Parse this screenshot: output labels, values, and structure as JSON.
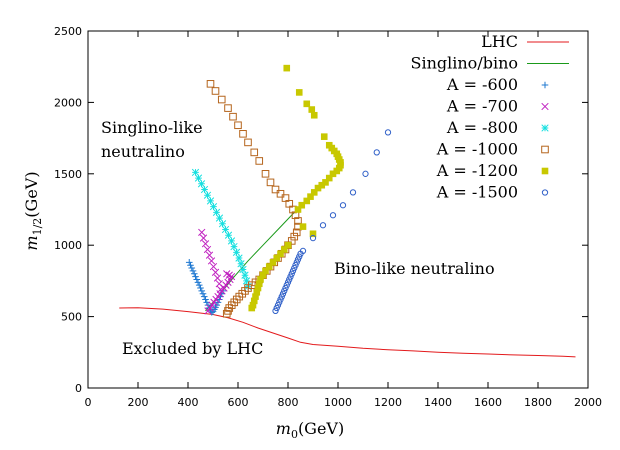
{
  "chart_data": {
    "type": "scatter",
    "xlabel": "m",
    "xlabel_sub": "0",
    "xlabel_unit": "(GeV)",
    "ylabel": "m",
    "ylabel_sub": "1/2",
    "ylabel_unit": "(GeV)",
    "xlim": [
      0,
      2000
    ],
    "ylim": [
      0,
      2500
    ],
    "x_ticks": [
      0,
      200,
      400,
      600,
      800,
      1000,
      1200,
      1400,
      1600,
      1800,
      2000
    ],
    "y_ticks": [
      0,
      500,
      1000,
      1500,
      2000,
      2500
    ],
    "legend_position": "top-right",
    "annotations": [
      {
        "id": "singlino",
        "lines": [
          "Singlino-like",
          "neutralino"
        ]
      },
      {
        "id": "bino",
        "lines": [
          "Bino-like neutralino"
        ]
      },
      {
        "id": "excluded",
        "lines": [
          "Excluded by LHC"
        ]
      }
    ],
    "series": [
      {
        "name": "LHC",
        "kind": "line",
        "color": "#e31a1c",
        "points": [
          [
            125,
            560
          ],
          [
            200,
            562
          ],
          [
            300,
            552
          ],
          [
            400,
            535
          ],
          [
            500,
            515
          ],
          [
            560,
            492
          ],
          [
            620,
            460
          ],
          [
            680,
            420
          ],
          [
            740,
            385
          ],
          [
            800,
            350
          ],
          [
            850,
            320
          ],
          [
            900,
            305
          ],
          [
            1000,
            292
          ],
          [
            1100,
            278
          ],
          [
            1200,
            268
          ],
          [
            1300,
            260
          ],
          [
            1400,
            250
          ],
          [
            1500,
            243
          ],
          [
            1600,
            238
          ],
          [
            1700,
            232
          ],
          [
            1800,
            228
          ],
          [
            1900,
            222
          ],
          [
            1950,
            218
          ]
        ]
      },
      {
        "name": "Singlino/bino",
        "kind": "line",
        "color": "#1a9a1a",
        "points": [
          [
            470,
            540
          ],
          [
            520,
            640
          ],
          [
            580,
            770
          ],
          [
            640,
            890
          ],
          [
            700,
            1000
          ],
          [
            760,
            1110
          ],
          [
            820,
            1220
          ],
          [
            880,
            1320
          ],
          [
            940,
            1420
          ],
          [
            1000,
            1520
          ]
        ]
      },
      {
        "name": "A = -600",
        "marker": "plus",
        "color": "#1f78d1",
        "points": [
          [
            405,
            880
          ],
          [
            410,
            860
          ],
          [
            415,
            840
          ],
          [
            420,
            820
          ],
          [
            425,
            800
          ],
          [
            430,
            780
          ],
          [
            435,
            760
          ],
          [
            440,
            740
          ],
          [
            445,
            720
          ],
          [
            450,
            700
          ],
          [
            455,
            680
          ],
          [
            460,
            660
          ],
          [
            465,
            640
          ],
          [
            470,
            620
          ],
          [
            475,
            600
          ],
          [
            480,
            580
          ],
          [
            485,
            560
          ],
          [
            490,
            545
          ],
          [
            495,
            530
          ],
          [
            500,
            535
          ],
          [
            505,
            550
          ],
          [
            510,
            565
          ],
          [
            515,
            580
          ],
          [
            520,
            600
          ],
          [
            525,
            620
          ],
          [
            530,
            640
          ],
          [
            535,
            660
          ],
          [
            540,
            680
          ]
        ]
      },
      {
        "name": "A = -700",
        "marker": "cross",
        "color": "#c020c0",
        "points": [
          [
            455,
            1090
          ],
          [
            462,
            1050
          ],
          [
            470,
            1010
          ],
          [
            478,
            970
          ],
          [
            486,
            930
          ],
          [
            494,
            890
          ],
          [
            502,
            850
          ],
          [
            510,
            810
          ],
          [
            518,
            770
          ],
          [
            525,
            730
          ],
          [
            530,
            690
          ],
          [
            480,
            540
          ],
          [
            488,
            560
          ],
          [
            496,
            580
          ],
          [
            504,
            600
          ],
          [
            512,
            620
          ],
          [
            520,
            640
          ],
          [
            528,
            660
          ],
          [
            536,
            680
          ],
          [
            544,
            700
          ],
          [
            552,
            720
          ],
          [
            560,
            740
          ],
          [
            568,
            760
          ],
          [
            574,
            780
          ],
          [
            565,
            790
          ],
          [
            555,
            800
          ]
        ]
      },
      {
        "name": "A = -800",
        "marker": "star",
        "color": "#17e0e0",
        "points": [
          [
            430,
            1510
          ],
          [
            442,
            1470
          ],
          [
            454,
            1430
          ],
          [
            466,
            1390
          ],
          [
            478,
            1350
          ],
          [
            490,
            1310
          ],
          [
            502,
            1270
          ],
          [
            514,
            1230
          ],
          [
            526,
            1190
          ],
          [
            538,
            1150
          ],
          [
            550,
            1110
          ],
          [
            562,
            1070
          ],
          [
            574,
            1030
          ],
          [
            584,
            990
          ],
          [
            594,
            950
          ],
          [
            604,
            910
          ],
          [
            612,
            870
          ],
          [
            620,
            830
          ],
          [
            628,
            790
          ],
          [
            634,
            750
          ],
          [
            640,
            710
          ]
        ]
      },
      {
        "name": "A = -1000",
        "marker": "square-open",
        "color": "#b5651d",
        "points": [
          [
            490,
            2130
          ],
          [
            510,
            2080
          ],
          [
            535,
            2020
          ],
          [
            560,
            1960
          ],
          [
            580,
            1900
          ],
          [
            600,
            1840
          ],
          [
            620,
            1780
          ],
          [
            640,
            1720
          ],
          [
            665,
            1650
          ],
          [
            685,
            1590
          ],
          [
            710,
            1500
          ],
          [
            730,
            1440
          ],
          [
            750,
            1390
          ],
          [
            770,
            1360
          ],
          [
            790,
            1330
          ],
          [
            805,
            1290
          ],
          [
            820,
            1250
          ],
          [
            830,
            1210
          ],
          [
            840,
            1170
          ],
          [
            840,
            1130
          ],
          [
            835,
            1090
          ],
          [
            825,
            1060
          ],
          [
            815,
            1030
          ],
          [
            800,
            1000
          ],
          [
            790,
            970
          ],
          [
            775,
            940
          ],
          [
            760,
            910
          ],
          [
            745,
            880
          ],
          [
            730,
            850
          ],
          [
            715,
            820
          ],
          [
            700,
            790
          ],
          [
            685,
            760
          ],
          [
            670,
            740
          ],
          [
            655,
            720
          ],
          [
            640,
            700
          ],
          [
            628,
            680
          ],
          [
            617,
            660
          ],
          [
            605,
            640
          ],
          [
            595,
            620
          ],
          [
            585,
            600
          ],
          [
            575,
            580
          ],
          [
            565,
            560
          ],
          [
            560,
            540
          ],
          [
            555,
            520
          ]
        ]
      },
      {
        "name": "A = -1200",
        "marker": "square-filled",
        "color": "#c8c800",
        "points": [
          [
            795,
            2240
          ],
          [
            845,
            2070
          ],
          [
            875,
            1990
          ],
          [
            895,
            1950
          ],
          [
            905,
            1910
          ],
          [
            945,
            1760
          ],
          [
            965,
            1700
          ],
          [
            975,
            1680
          ],
          [
            985,
            1660
          ],
          [
            995,
            1640
          ],
          [
            1000,
            1620
          ],
          [
            1005,
            1600
          ],
          [
            1010,
            1580
          ],
          [
            1010,
            1560
          ],
          [
            1005,
            1540
          ],
          [
            995,
            1520
          ],
          [
            980,
            1500
          ],
          [
            965,
            1470
          ],
          [
            950,
            1440
          ],
          [
            935,
            1420
          ],
          [
            920,
            1400
          ],
          [
            905,
            1370
          ],
          [
            890,
            1340
          ],
          [
            875,
            1310
          ],
          [
            855,
            1280
          ],
          [
            840,
            1250
          ],
          [
            860,
            1130
          ],
          [
            900,
            1080
          ],
          [
            800,
            1000
          ],
          [
            785,
            970
          ],
          [
            770,
            940
          ],
          [
            755,
            910
          ],
          [
            740,
            880
          ],
          [
            725,
            850
          ],
          [
            710,
            820
          ],
          [
            700,
            790
          ],
          [
            690,
            760
          ],
          [
            685,
            730
          ],
          [
            680,
            700
          ],
          [
            675,
            670
          ],
          [
            670,
            640
          ],
          [
            665,
            610
          ],
          [
            660,
            580
          ],
          [
            655,
            560
          ]
        ]
      },
      {
        "name": "A = -1500",
        "marker": "circle-open",
        "color": "#3060c8",
        "points": [
          [
            1200,
            1790
          ],
          [
            1155,
            1650
          ],
          [
            1110,
            1500
          ],
          [
            1060,
            1370
          ],
          [
            1020,
            1280
          ],
          [
            980,
            1210
          ],
          [
            940,
            1140
          ],
          [
            900,
            1050
          ],
          [
            860,
            960
          ],
          [
            850,
            940
          ],
          [
            845,
            920
          ],
          [
            840,
            900
          ],
          [
            835,
            880
          ],
          [
            830,
            860
          ],
          [
            825,
            840
          ],
          [
            820,
            820
          ],
          [
            815,
            800
          ],
          [
            810,
            780
          ],
          [
            805,
            760
          ],
          [
            800,
            740
          ],
          [
            795,
            720
          ],
          [
            790,
            700
          ],
          [
            785,
            680
          ],
          [
            780,
            660
          ],
          [
            775,
            640
          ],
          [
            770,
            620
          ],
          [
            765,
            600
          ],
          [
            760,
            580
          ],
          [
            755,
            560
          ],
          [
            750,
            540
          ]
        ]
      }
    ]
  }
}
